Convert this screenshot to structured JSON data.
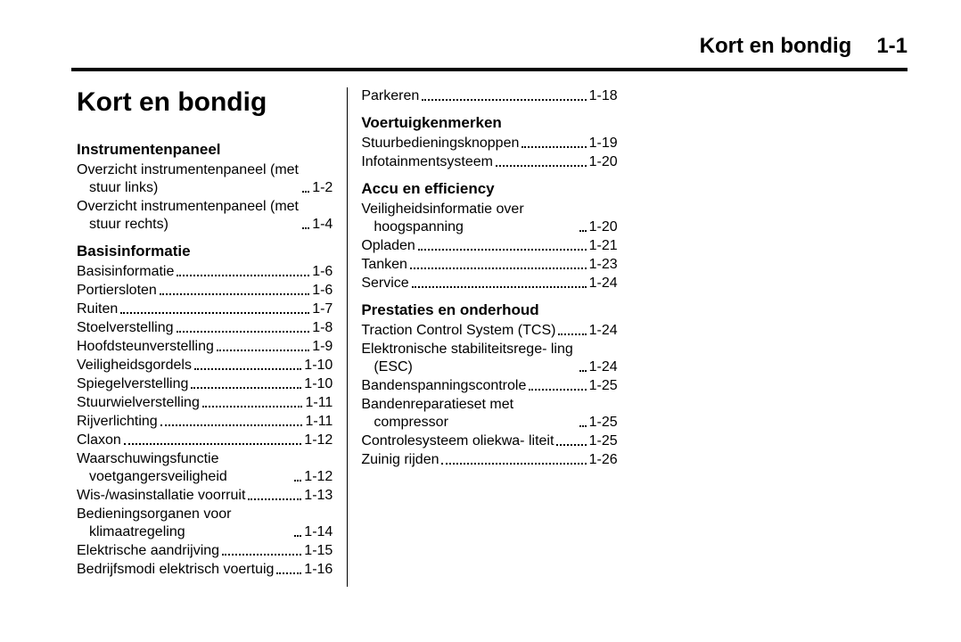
{
  "header": {
    "title": "Kort en bondig",
    "page": "1-1"
  },
  "main_title": "Kort en bondig",
  "sections": [
    {
      "heading": "Instrumentenpaneel",
      "entries": [
        {
          "label": "Overzicht instrumentenpaneel (met stuur links)",
          "page": "1-2"
        },
        {
          "label": "Overzicht instrumentenpaneel (met stuur rechts)",
          "page": "1-4"
        }
      ]
    },
    {
      "heading": "Basisinformatie",
      "entries": [
        {
          "label": "Basisinformatie",
          "page": "1-6"
        },
        {
          "label": "Portiersloten",
          "page": "1-6"
        },
        {
          "label": "Ruiten",
          "page": "1-7"
        },
        {
          "label": "Stoelverstelling",
          "page": "1-8"
        },
        {
          "label": "Hoofdsteunverstelling",
          "page": "1-9"
        },
        {
          "label": "Veiligheidsgordels",
          "page": "1-10"
        },
        {
          "label": "Spiegelverstelling",
          "page": "1-10"
        },
        {
          "label": "Stuurwielverstelling",
          "page": "1-11"
        },
        {
          "label": "Rijverlichting",
          "page": "1-11"
        },
        {
          "label": "Claxon",
          "page": "1-12"
        },
        {
          "label": "Waarschuwingsfunctie voetgangersveiligheid",
          "page": "1-12"
        },
        {
          "label": "Wis-/wasinstallatie voorruit",
          "page": "1-13"
        },
        {
          "label": "Bedieningsorganen voor klimaatregeling",
          "page": "1-14"
        },
        {
          "label": "Elektrische aandrijving",
          "page": "1-15"
        },
        {
          "label": "Bedrijfsmodi elektrisch voertuig",
          "page": "1-16"
        },
        {
          "label": "Parkeren",
          "page": "1-18"
        }
      ]
    },
    {
      "heading": "Voertuigkenmerken",
      "entries": [
        {
          "label": "Stuurbedieningsknoppen",
          "page": "1-19"
        },
        {
          "label": "Infotainmentsysteem",
          "page": "1-20"
        }
      ]
    },
    {
      "heading": "Accu en efficiency",
      "entries": [
        {
          "label": "Veiligheidsinformatie over hoogspanning",
          "page": "1-20"
        },
        {
          "label": "Opladen",
          "page": "1-21"
        },
        {
          "label": "Tanken",
          "page": "1-23"
        },
        {
          "label": "Service",
          "page": "1-24"
        }
      ]
    },
    {
      "heading": "Prestaties en onderhoud",
      "entries": [
        {
          "label": "Traction Control System (TCS)",
          "page": "1-24"
        },
        {
          "label": "Elektronische stabiliteitsrege- ling (ESC)",
          "page": "1-24"
        },
        {
          "label": "Bandenspanningscontrole",
          "page": "1-25"
        },
        {
          "label": "Bandenreparatieset met compressor",
          "page": "1-25"
        },
        {
          "label": "Controlesysteem oliekwa- liteit",
          "page": "1-25"
        },
        {
          "label": "Zuinig rijden",
          "page": "1-26"
        }
      ]
    }
  ]
}
